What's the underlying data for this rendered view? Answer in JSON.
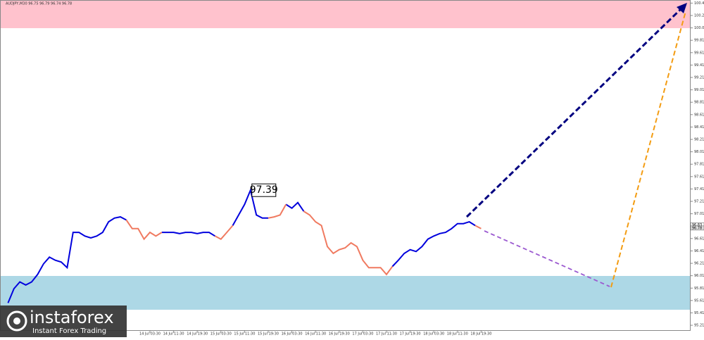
{
  "chart_data": {
    "type": "line",
    "title": "AUDJPY,M30 96.75 96.79 96.74 96.78",
    "categories": [
      null,
      null,
      null,
      null,
      null,
      null,
      null,
      null,
      null,
      null,
      null,
      null,
      null,
      null,
      null,
      null,
      null,
      null,
      null,
      null,
      null,
      null,
      null,
      null,
      "14 Jul 03:30",
      null,
      null,
      null,
      "14 Jul 11:30",
      null,
      null,
      null,
      "14 Jul 19:30",
      null,
      null,
      null,
      "15 Jul 03:30",
      null,
      null,
      null,
      "15 Jul 11:30",
      null,
      null,
      null,
      "15 Jul 19:30",
      null,
      null,
      null,
      "16 Jul 03:30",
      null,
      null,
      null,
      "16 Jul 11:30",
      null,
      null,
      null,
      "16 Jul 19:30",
      null,
      null,
      null,
      "17 Jul 03:30",
      null,
      null,
      null,
      "17 Jul 11:30",
      null,
      null,
      null,
      "17 Jul 19:30",
      null,
      null,
      null,
      "18 Jul 03:30",
      null,
      null,
      null,
      "18 Jul 11:30",
      null,
      null,
      null,
      "18 Jul 19:30"
    ],
    "series": [
      {
        "color": "#0000dd",
        "values": [
          95.57,
          95.8,
          95.91,
          95.86,
          95.91,
          96.03,
          96.2,
          96.31,
          96.26,
          96.23,
          96.14,
          96.71,
          96.71,
          96.65,
          96.62,
          96.65,
          96.71,
          96.88,
          96.94,
          96.96,
          96.91,
          null,
          null,
          null,
          null,
          null,
          96.71,
          96.71,
          96.71,
          96.69,
          96.71,
          96.71,
          96.69,
          96.71,
          96.71,
          96.65,
          null,
          null,
          96.82,
          96.99,
          97.16,
          97.39,
          96.99,
          96.94,
          96.94,
          null,
          null,
          97.16,
          97.1,
          97.19,
          97.05,
          null,
          null,
          null,
          null,
          null,
          null,
          null,
          null,
          null,
          null,
          null,
          null,
          null,
          null,
          96.16,
          96.26,
          96.37,
          96.43,
          96.4,
          96.48,
          96.6,
          96.65,
          96.69,
          96.71,
          96.77,
          96.85,
          96.85,
          96.88,
          96.82,
          null
        ]
      },
      {
        "color": "#f07a60",
        "values": [
          null,
          null,
          null,
          null,
          null,
          null,
          null,
          null,
          null,
          null,
          null,
          null,
          null,
          null,
          null,
          null,
          null,
          null,
          null,
          null,
          96.91,
          96.77,
          96.77,
          96.6,
          96.71,
          96.65,
          96.71,
          null,
          null,
          null,
          null,
          null,
          null,
          null,
          null,
          96.65,
          96.6,
          96.71,
          96.82,
          null,
          null,
          null,
          null,
          null,
          96.94,
          96.96,
          96.99,
          97.16,
          null,
          null,
          97.05,
          96.99,
          96.88,
          96.82,
          96.48,
          96.37,
          96.43,
          96.46,
          96.54,
          96.48,
          96.26,
          96.14,
          96.14,
          96.14,
          96.03,
          96.16,
          null,
          null,
          null,
          null,
          null,
          null,
          null,
          null,
          null,
          null,
          null,
          null,
          null,
          96.82,
          96.77
        ]
      }
    ],
    "ylim": [
      95.12,
      100.46
    ],
    "yticks": [
      95.21,
      95.41,
      95.61,
      95.81,
      96.01,
      96.21,
      96.41,
      96.61,
      96.81,
      97.01,
      97.21,
      97.41,
      97.61,
      97.81,
      98.01,
      98.21,
      98.41,
      98.61,
      98.81,
      99.01,
      99.21,
      99.41,
      99.61,
      99.81,
      100.01,
      100.21,
      100.41
    ],
    "peak_label": 97.39,
    "last_price_labels": [
      96.83,
      96.78
    ],
    "watermark": {
      "brand": "instaforex",
      "tagline": "Instant Forex Trading"
    }
  }
}
